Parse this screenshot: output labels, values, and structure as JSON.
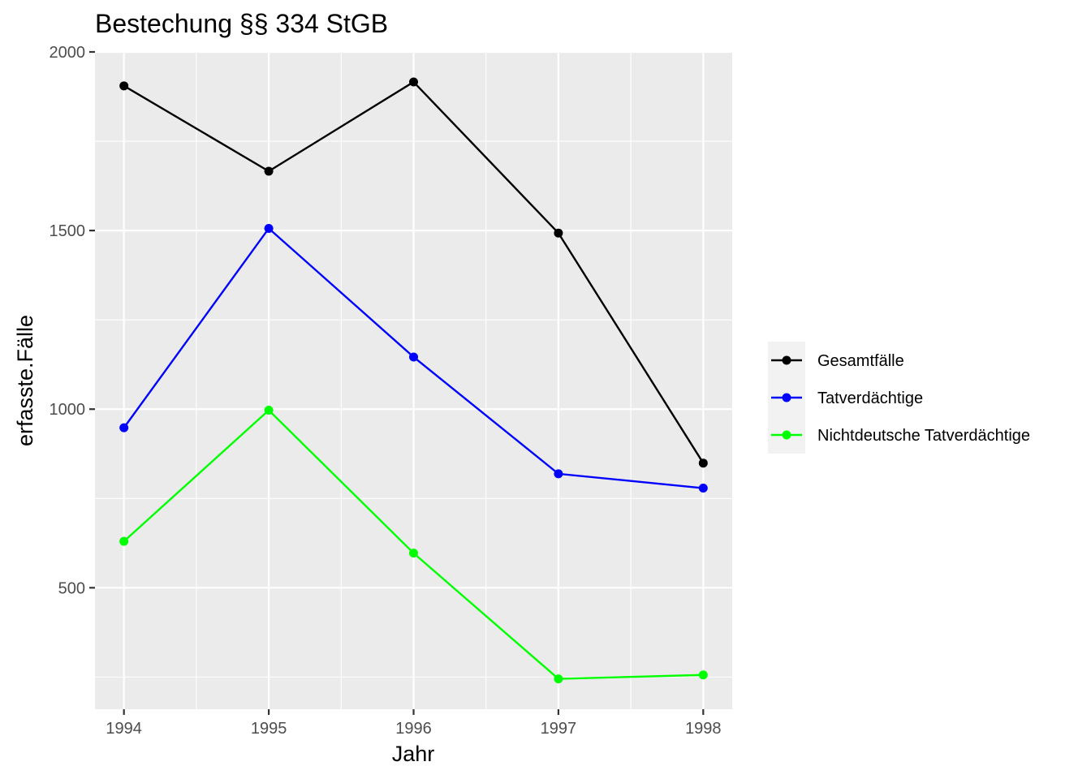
{
  "chart_data": {
    "type": "line",
    "title": "Bestechung §§ 334 StGB",
    "xlabel": "Jahr",
    "ylabel": "erfasste.Fälle",
    "x": [
      1994,
      1995,
      1996,
      1997,
      1998
    ],
    "x_tick_labels": [
      "1994",
      "1995",
      "1996",
      "1997",
      "1998"
    ],
    "y_ticks": [
      500,
      1000,
      1500,
      2000
    ],
    "y_tick_labels": [
      "500",
      "1000",
      "1500",
      "2000"
    ],
    "xlim": [
      1993.8,
      1998.2
    ],
    "ylim": [
      160,
      2000
    ],
    "grid": true,
    "legend_position": "right",
    "series": [
      {
        "name": "Gesamtfälle",
        "color": "#000000",
        "values": [
          1905,
          1666,
          1916,
          1493,
          849
        ]
      },
      {
        "name": "Tatverdächtige",
        "color": "#0000ff",
        "values": [
          948,
          1506,
          1146,
          819,
          779
        ]
      },
      {
        "name": "Nichtdeutsche Tatverdächtige",
        "color": "#00ff00",
        "values": [
          630,
          997,
          597,
          245,
          256
        ]
      }
    ]
  }
}
